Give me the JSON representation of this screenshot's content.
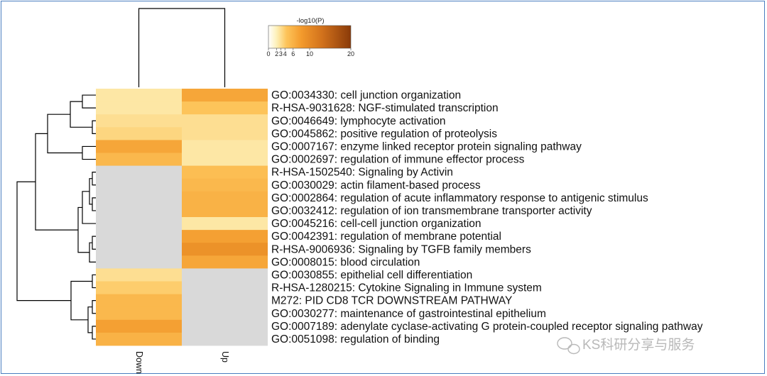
{
  "chart_data": {
    "type": "heatmap",
    "columns": [
      "Down",
      "Up"
    ],
    "rows": [
      "GO:0034330: cell junction organization",
      "R-HSA-9031628: NGF-stimulated transcription",
      "GO:0046649: lymphocyte activation",
      "GO:0045862: positive regulation of proteolysis",
      "GO:0007167: enzyme linked receptor protein signaling pathway",
      "GO:0002697: regulation of immune effector process",
      "R-HSA-1502540: Signaling by Activin",
      "GO:0030029: actin filament-based process",
      "GO:0002864: regulation of acute inflammatory response to antigenic stimulus",
      "GO:0032412: regulation of ion transmembrane transporter activity",
      "GO:0045216: cell-cell junction organization",
      "GO:0042391: regulation of membrane potential",
      "R-HSA-9006936: Signaling by TGFB family members",
      "GO:0008015: blood circulation",
      "GO:0030855: epithelial cell differentiation",
      "R-HSA-1280215: Cytokine Signaling in Immune system",
      "M272: PID CD8 TCR DOWNSTREAM PATHWAY",
      "GO:0030277: maintenance of gastrointestinal epithelium",
      "GO:0007189: adenylate cyclase-activating G protein-coupled receptor signaling pathway",
      "GO:0051098: regulation of binding"
    ],
    "values": [
      [
        2.5,
        7.0
      ],
      [
        2.5,
        4.5
      ],
      [
        3.0,
        3.0
      ],
      [
        3.5,
        3.0
      ],
      [
        7.0,
        2.5
      ],
      [
        5.5,
        2.5
      ],
      [
        null,
        5.0
      ],
      [
        null,
        5.5
      ],
      [
        null,
        6.0
      ],
      [
        null,
        6.0
      ],
      [
        null,
        2.5
      ],
      [
        null,
        7.5
      ],
      [
        null,
        9.0
      ],
      [
        null,
        7.0
      ],
      [
        3.0,
        null
      ],
      [
        4.0,
        null
      ],
      [
        5.5,
        null
      ],
      [
        5.5,
        null
      ],
      [
        7.5,
        null
      ],
      [
        6.0,
        null
      ]
    ],
    "missing_color": "#d9d9d9",
    "colorbar": {
      "title": "-log10(P)",
      "ticks": [
        0,
        2,
        3,
        4,
        6,
        10,
        20
      ],
      "range": [
        0,
        20
      ],
      "colors": [
        "#ffffff",
        "#fdf0b8",
        "#fdc45a",
        "#f39a2c",
        "#d2721c",
        "#8a3a09"
      ]
    },
    "dendrogram": "hierarchical clustering of rows and columns"
  },
  "watermark": {
    "text": "KS科研分享与服务"
  }
}
